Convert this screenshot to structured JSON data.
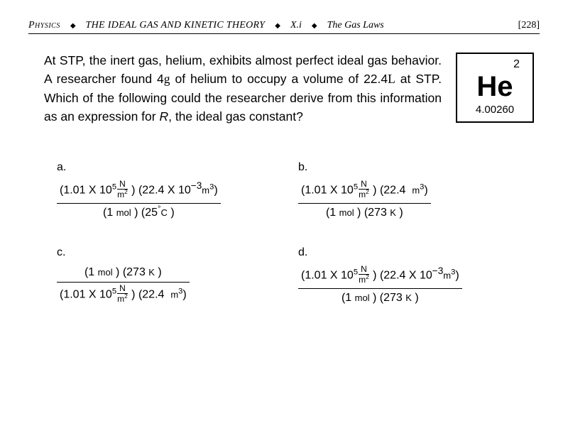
{
  "header": {
    "subject": "Physics",
    "chapter": "THE IDEAL GAS AND KINETIC THEORY",
    "section_num": "X.i",
    "section_title": "The Gas Laws",
    "page": "[228]"
  },
  "question": {
    "text_parts": [
      "At STP, the inert gas, helium, exhibits almost perfect ideal gas behavior.  A researcher found 4",
      "g",
      " of helium to occupy a volume of 22.4",
      "L",
      " at STP.  Which of the following could the researcher derive from this information as an expression for ",
      "R",
      ", the ideal gas constant?"
    ]
  },
  "element": {
    "atomic_number": "2",
    "symbol": "He",
    "mass": "4.00260"
  },
  "choices": {
    "a": {
      "label": "a.",
      "numerator": {
        "pressure_val": "1.01 X 10",
        "pressure_exp": "5",
        "pressure_unit_n": "N",
        "pressure_unit_d": "m",
        "volume_val": "22.4 X 10",
        "volume_exp": "−3",
        "volume_unit": "m",
        "vol_sup": "3"
      },
      "denominator": {
        "mol": "1",
        "mol_unit": "mol",
        "temp": "25",
        "deg": "°",
        "temp_unit": "C"
      }
    },
    "b": {
      "label": "b.",
      "numerator": {
        "pressure_val": "1.01 X 10",
        "pressure_exp": "5",
        "pressure_unit_n": "N",
        "pressure_unit_d": "m",
        "volume_val": "22.4",
        "volume_unit": "m",
        "vol_sup": "3"
      },
      "denominator": {
        "mol": "1",
        "mol_unit": "mol",
        "temp": "273",
        "temp_unit": "K"
      }
    },
    "c": {
      "label": "c.",
      "numerator": {
        "mol": "1",
        "mol_unit": "mol",
        "temp": "273",
        "temp_unit": "K"
      },
      "denominator": {
        "pressure_val": "1.01 X 10",
        "pressure_exp": "5",
        "pressure_unit_n": "N",
        "pressure_unit_d": "m",
        "volume_val": "22.4",
        "volume_unit": "m",
        "vol_sup": "3"
      }
    },
    "d": {
      "label": "d.",
      "numerator": {
        "pressure_val": "1.01 X 10",
        "pressure_exp": "5",
        "pressure_unit_n": "N",
        "pressure_unit_d": "m",
        "volume_val": "22.4 X 10",
        "volume_exp": "−3",
        "volume_unit": "m",
        "vol_sup": "3"
      },
      "denominator": {
        "mol": "1",
        "mol_unit": "mol",
        "temp": "273",
        "temp_unit": "K"
      }
    }
  }
}
